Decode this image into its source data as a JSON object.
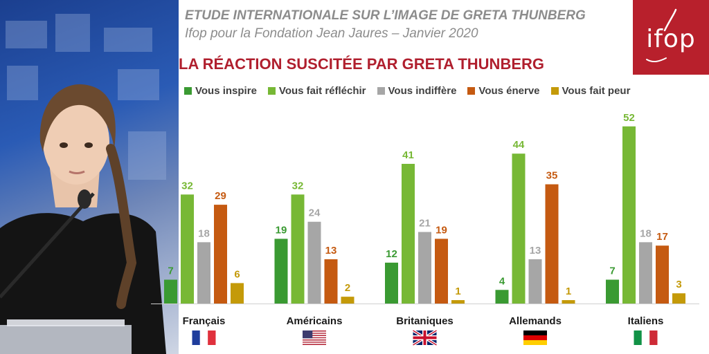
{
  "header": {
    "title": "ETUDE INTERNATIONALE SUR L’IMAGE DE GRETA THUNBERG",
    "subtitle": "Ifop pour la Fondation Jean Jaures – Janvier 2020"
  },
  "logo": {
    "text": "ifop",
    "color": "#b8202c"
  },
  "chart_data": {
    "type": "bar",
    "title": "LA RÉACTION SUSCITÉE PAR GRETA THUNBERG",
    "xlabel": "",
    "ylabel": "",
    "ylim": [
      0,
      55
    ],
    "grid": false,
    "legend_position": "top",
    "categories": [
      "Français",
      "Américains",
      "Britaniques",
      "Allemands",
      "Italiens"
    ],
    "series": [
      {
        "name": "Vous inspire",
        "color": "#3a9a32",
        "values": [
          7,
          19,
          12,
          4,
          7
        ]
      },
      {
        "name": "Vous fait réfléchir",
        "color": "#77b835",
        "values": [
          32,
          32,
          41,
          44,
          52
        ]
      },
      {
        "name": "Vous indiffère",
        "color": "#a6a6a6",
        "values": [
          18,
          24,
          21,
          13,
          18
        ]
      },
      {
        "name": "Vous énerve",
        "color": "#c55a11",
        "values": [
          29,
          13,
          19,
          35,
          17
        ]
      },
      {
        "name": "Vous fait peur",
        "color": "#c49a09",
        "values": [
          6,
          2,
          1,
          1,
          3
        ]
      }
    ],
    "flags": [
      "flag-france",
      "flag-usa",
      "flag-uk",
      "flag-germany",
      "flag-italy"
    ]
  }
}
